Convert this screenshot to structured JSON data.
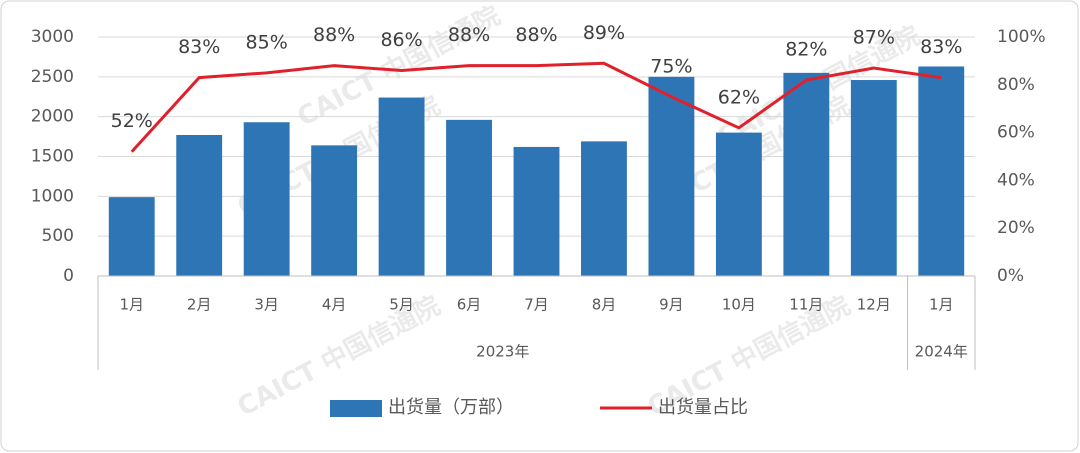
{
  "chart_data": {
    "type": "bar_line",
    "categories": [
      "1月",
      "2月",
      "3月",
      "4月",
      "5月",
      "6月",
      "7月",
      "8月",
      "9月",
      "10月",
      "11月",
      "12月",
      "1月"
    ],
    "groups": [
      {
        "label": "2023年",
        "count": 12
      },
      {
        "label": "2024年",
        "count": 1
      }
    ],
    "series": [
      {
        "name": "出货量（万部）",
        "type": "bar",
        "color": "#2e75b6",
        "values": [
          990,
          1770,
          1930,
          1640,
          2240,
          1960,
          1620,
          1690,
          2500,
          1800,
          2550,
          2460,
          2630
        ]
      },
      {
        "name": "出货量占比",
        "type": "line",
        "axis": "y2",
        "color": "#e0202a",
        "values": [
          52,
          83,
          85,
          88,
          86,
          88,
          88,
          89,
          75,
          62,
          82,
          87,
          83
        ],
        "value_labels": [
          "52%",
          "83%",
          "85%",
          "88%",
          "86%",
          "88%",
          "88%",
          "89%",
          "75%",
          "62%",
          "82%",
          "87%",
          "83%"
        ]
      }
    ],
    "ylim": [
      0,
      3000
    ],
    "yticks": [
      0,
      500,
      1000,
      1500,
      2000,
      2500,
      3000
    ],
    "y2lim": [
      0,
      100
    ],
    "y2ticks": [
      {
        "value": 0,
        "label": "0%"
      },
      {
        "value": 20,
        "label": "20%"
      },
      {
        "value": 40,
        "label": "40%"
      },
      {
        "value": 60,
        "label": "60%"
      },
      {
        "value": 80,
        "label": "80%"
      },
      {
        "value": 100,
        "label": "100%"
      }
    ],
    "grid": true,
    "legend": "bottom",
    "watermark": "CAICT 中国信通院"
  }
}
